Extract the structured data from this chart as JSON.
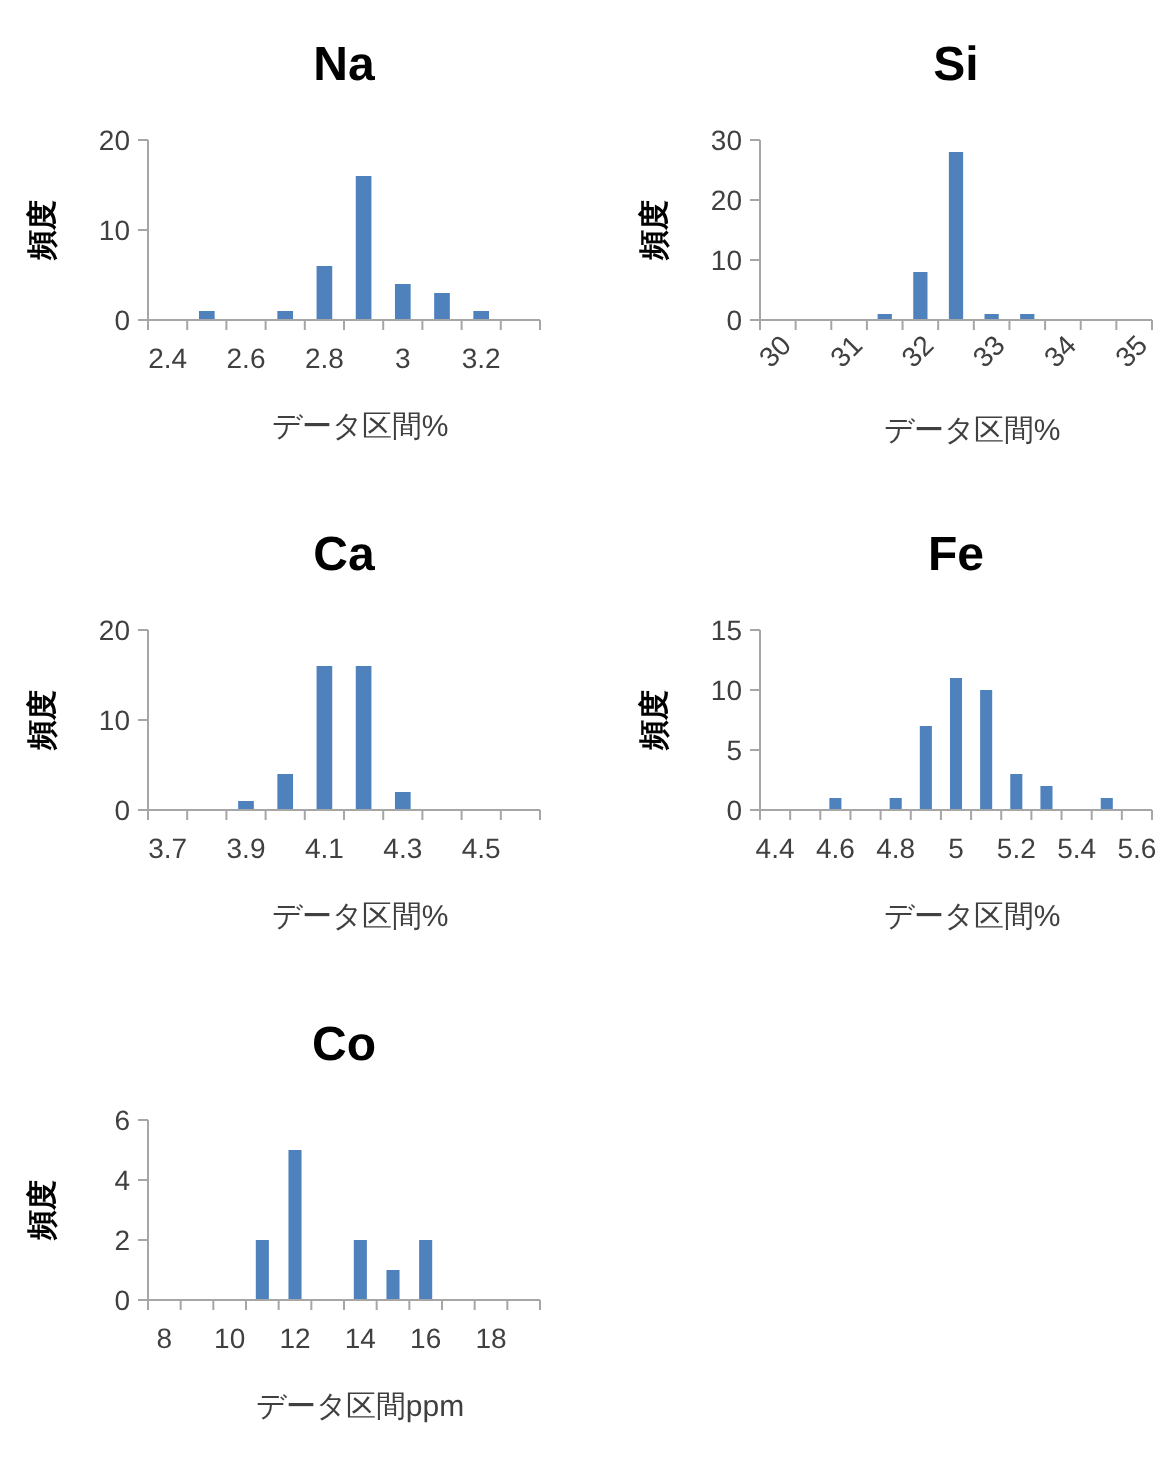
{
  "chart_data": [
    {
      "type": "bar",
      "title": "Na",
      "xlabel": "データ区間%",
      "ylabel": "頻度",
      "categories": [
        "2.4",
        null,
        "2.6",
        null,
        "2.8",
        null,
        "3",
        null,
        "3.2",
        null
      ],
      "values": [
        0,
        1,
        0,
        1,
        6,
        16,
        4,
        3,
        1,
        0
      ],
      "color": "#4f81bd",
      "ylim": [
        0,
        20
      ],
      "yticks": [
        0,
        10,
        20
      ],
      "grid": false
    },
    {
      "type": "bar",
      "title": "Si",
      "xlabel": "データ区間%",
      "ylabel": "頻度",
      "categories": [
        "30",
        null,
        "31",
        null,
        "32",
        null,
        "33",
        null,
        "34",
        null,
        "35"
      ],
      "values": [
        0,
        0,
        0,
        1,
        8,
        28,
        1,
        1,
        0,
        0,
        0
      ],
      "color": "#4f81bd",
      "ylim": [
        0,
        30
      ],
      "yticks": [
        0,
        10,
        20,
        30
      ],
      "grid": false
    },
    {
      "type": "bar",
      "title": "Ca",
      "xlabel": "データ区間%",
      "ylabel": "頻度",
      "categories": [
        "3.7",
        null,
        "3.9",
        null,
        "4.1",
        null,
        "4.3",
        null,
        "4.5",
        null
      ],
      "values": [
        0,
        0,
        1,
        4,
        16,
        16,
        2,
        0,
        0,
        0
      ],
      "color": "#4f81bd",
      "ylim": [
        0,
        20
      ],
      "yticks": [
        0,
        10,
        20
      ],
      "grid": false
    },
    {
      "type": "bar",
      "title": "Fe",
      "xlabel": "データ区間%",
      "ylabel": "頻度",
      "categories": [
        "4.4",
        null,
        "4.6",
        null,
        "4.8",
        null,
        "5",
        null,
        "5.2",
        null,
        "5.4",
        null,
        "5.6"
      ],
      "values": [
        0,
        0,
        1,
        0,
        1,
        7,
        11,
        10,
        3,
        2,
        0,
        1,
        0
      ],
      "color": "#4f81bd",
      "ylim": [
        0,
        15
      ],
      "yticks": [
        0,
        5,
        10,
        15
      ],
      "grid": false
    },
    {
      "type": "bar",
      "title": "Co",
      "xlabel": "データ区間ppm",
      "ylabel": "頻度",
      "categories": [
        "8",
        null,
        "10",
        null,
        "12",
        null,
        "14",
        null,
        "16",
        null,
        "18",
        null
      ],
      "values": [
        0,
        0,
        0,
        2,
        5,
        0,
        2,
        1,
        2,
        0,
        0,
        0
      ],
      "color": "#4f81bd",
      "ylim": [
        0,
        6
      ],
      "yticks": [
        0,
        2,
        4,
        6
      ],
      "grid": false
    }
  ]
}
